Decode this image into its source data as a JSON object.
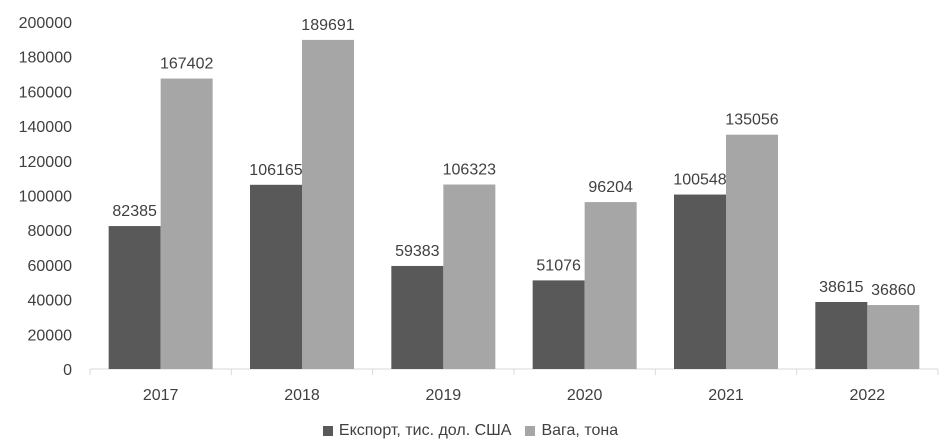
{
  "chart_data": {
    "type": "bar",
    "categories": [
      "2017",
      "2018",
      "2019",
      "2020",
      "2021",
      "2022"
    ],
    "series": [
      {
        "name": "Експорт, тис. дол. США",
        "values": [
          82385,
          106165,
          59383,
          51076,
          100548,
          38615
        ],
        "color": "#595959"
      },
      {
        "name": "Вага, тона",
        "values": [
          167402,
          189691,
          106323,
          96204,
          135056,
          36860
        ],
        "color": "#a6a6a6"
      }
    ],
    "y_ticks": [
      "0",
      "20000",
      "40000",
      "60000",
      "80000",
      "100000",
      "120000",
      "140000",
      "160000",
      "180000",
      "200000"
    ],
    "ylim": [
      0,
      200000
    ],
    "grid": false,
    "legend_position": "bottom",
    "data_labels": true
  }
}
